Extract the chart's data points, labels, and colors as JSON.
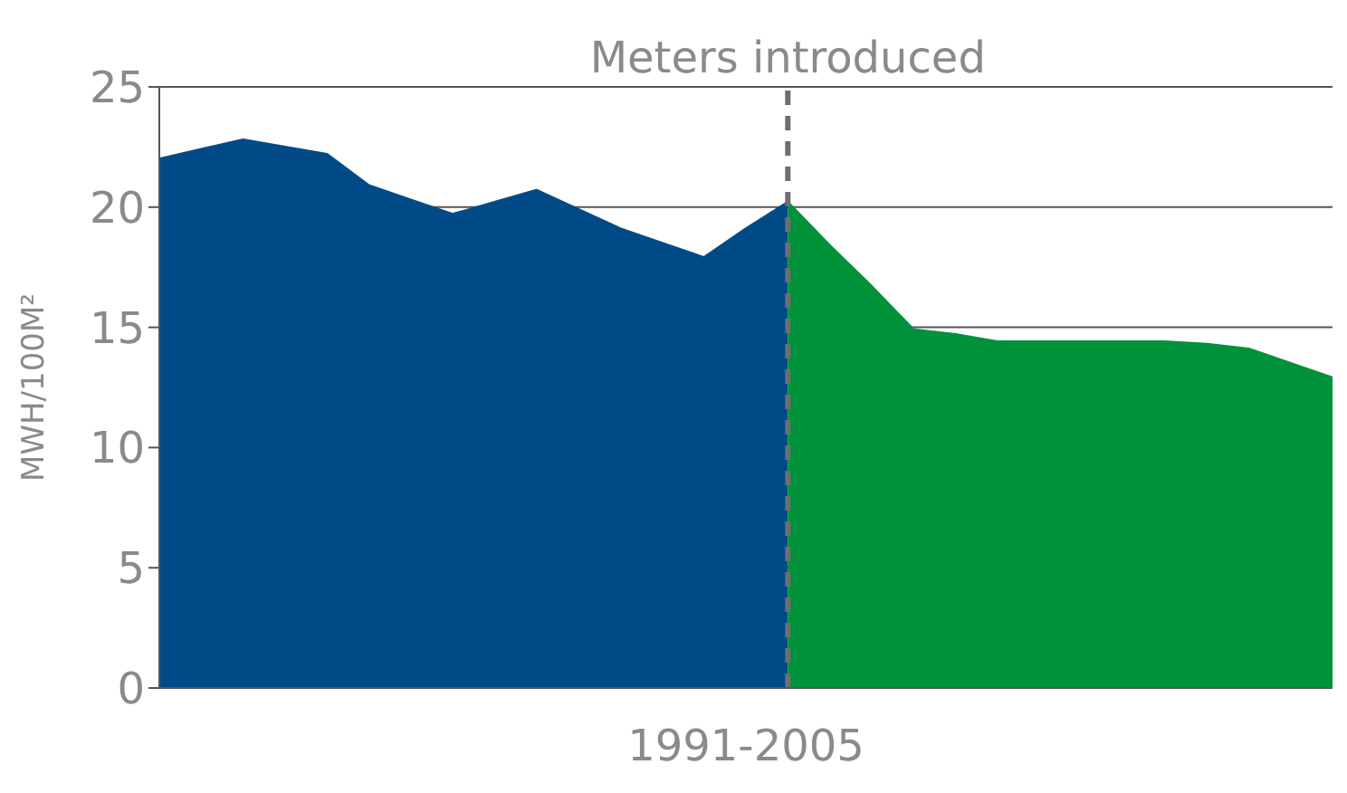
{
  "chart_data": {
    "type": "area",
    "xlabel": "1991-2005",
    "ylabel": "MWH/100M²",
    "categories": [
      null,
      null,
      null,
      null,
      null,
      null,
      null,
      null,
      null,
      null,
      null,
      null,
      null,
      null,
      null,
      null,
      null,
      null,
      null,
      null,
      null,
      null,
      null,
      null,
      null,
      null,
      null,
      null,
      null
    ],
    "ylim": [
      0,
      25
    ],
    "yticks": [
      0,
      5,
      10,
      15,
      20,
      25
    ],
    "grid": "y",
    "series": [
      {
        "color": "#004b87",
        "values": [
          22.0,
          22.4,
          22.8,
          22.5,
          22.2,
          20.9,
          20.3,
          19.7,
          20.2,
          20.7,
          19.9,
          19.1,
          18.5,
          17.9,
          19.1,
          20.2,
          null,
          null,
          null,
          null,
          null,
          null,
          null,
          null,
          null,
          null,
          null,
          null,
          null
        ]
      },
      {
        "color": "#00923a",
        "values": [
          null,
          null,
          null,
          null,
          null,
          null,
          null,
          null,
          null,
          null,
          null,
          null,
          null,
          null,
          null,
          20.2,
          18.4,
          16.7,
          14.9,
          14.7,
          14.4,
          14.4,
          14.4,
          14.4,
          14.4,
          14.3,
          14.1,
          13.5,
          12.9
        ]
      }
    ],
    "ref_lines": [
      {
        "axis": "x",
        "label": "Meters introduced",
        "color": "#6d6e71",
        "line_style": "dashed"
      }
    ]
  }
}
